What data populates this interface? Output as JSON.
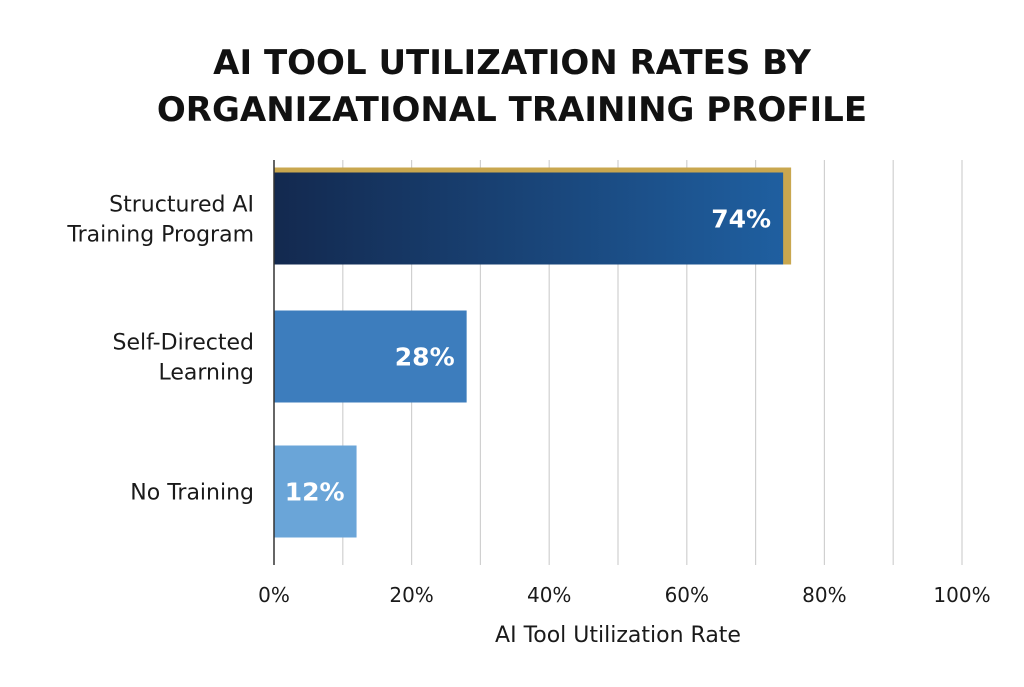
{
  "chart_data": {
    "type": "bar",
    "orientation": "horizontal",
    "title": "AI TOOL UTILIZATION RATES BY\nORGANIZATIONAL TRAINING PROFILE",
    "xlabel": "AI Tool Utilization Rate",
    "ylabel": "",
    "categories": [
      "Structured AI\nTraining Program",
      "Self-Directed\nLearning",
      "No Training"
    ],
    "values": [
      74,
      28,
      12
    ],
    "value_labels": [
      "74%",
      "28%",
      "12%"
    ],
    "xlim": [
      0,
      100
    ],
    "xticks": [
      0,
      20,
      40,
      60,
      80,
      100
    ],
    "xtick_labels": [
      "0%",
      "20%",
      "40%",
      "60%",
      "80%",
      "100%"
    ],
    "grid": "vertical",
    "legend": "none",
    "colors": {
      "highlight_start": "#13294f",
      "highlight_end": "#1f5fa0",
      "highlight_border": "#c9a74f",
      "mid": "#3d7dbd",
      "light": "#6aa5d8",
      "grid": "#d0d0d0",
      "axis": "#333333"
    }
  }
}
